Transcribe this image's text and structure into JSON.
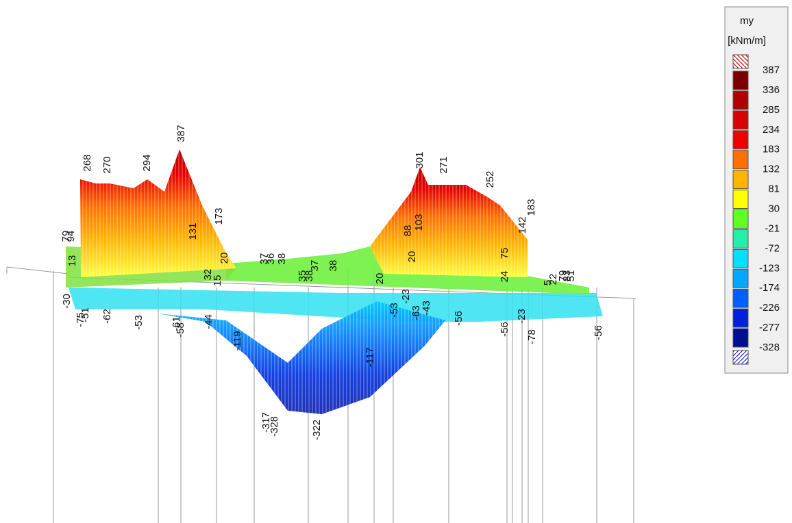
{
  "legend": {
    "title": "my",
    "unit": "[kNm/m]",
    "levels": [
      387,
      336,
      285,
      234,
      183,
      132,
      81,
      30,
      -21,
      -72,
      -123,
      -174,
      -226,
      -277,
      -328
    ],
    "colors": [
      "#7a0000",
      "#b00000",
      "#d80000",
      "#f00000",
      "#ff7000",
      "#ffb400",
      "#ffff00",
      "#60ff20",
      "#20f0a8",
      "#00e0ff",
      "#00a8ff",
      "#0060ff",
      "#0020e0",
      "#001090"
    ]
  },
  "labels": [
    268,
    270,
    294,
    387,
    173,
    131,
    79,
    94,
    13,
    20,
    32,
    15,
    37,
    36,
    38,
    37,
    38,
    35,
    38,
    20,
    301,
    271,
    252,
    183,
    88,
    103,
    142,
    20,
    75,
    24,
    5,
    22,
    79,
    83,
    51,
    -30,
    -75,
    -51,
    -62,
    -53,
    -61,
    -58,
    -44,
    -119,
    -23,
    -53,
    -63,
    -43,
    -56,
    -117,
    -56,
    -23,
    -78,
    -56,
    -317,
    -328,
    -322
  ]
}
